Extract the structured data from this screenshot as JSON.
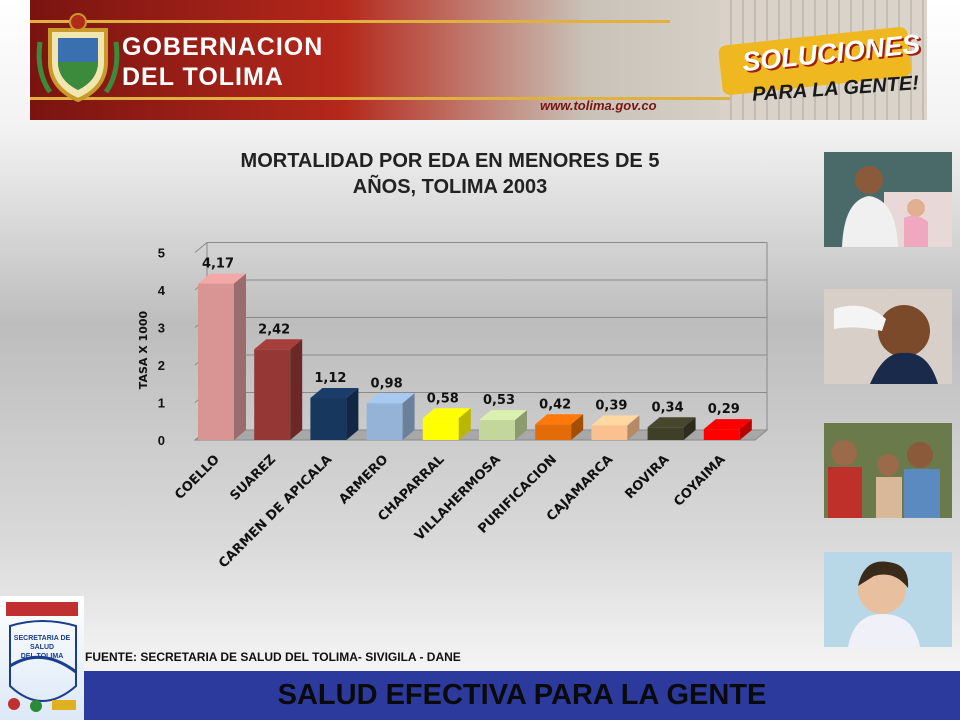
{
  "header": {
    "title_line1": "GOBERNACION",
    "title_line2": "DEL TOLIMA",
    "url": "www.tolima.gov.co",
    "slogan_main": "SOLUCIONES",
    "slogan_sub": "PARA LA GENTE!"
  },
  "chart_title_line1": "MORTALIDAD POR EDA EN MENORES DE 5",
  "chart_title_line2": "AÑOS, TOLIMA 2003",
  "chart_data": {
    "type": "bar",
    "categories": [
      "COELLO",
      "SUAREZ",
      "CARMEN DE APICALA",
      "ARMERO",
      "CHAPARRAL",
      "VILLAHERMOSA",
      "PURIFICACION",
      "CAJAMARCA",
      "ROVIRA",
      "COYAIMA"
    ],
    "values": [
      4.17,
      2.42,
      1.12,
      0.98,
      0.58,
      0.53,
      0.42,
      0.39,
      0.34,
      0.29
    ],
    "data_labels": [
      "4,17",
      "2,42",
      "1,12",
      "0,98",
      "0,58",
      "0,53",
      "0,42",
      "0,39",
      "0,34",
      "0,29"
    ],
    "colors": [
      "#d99594",
      "#953735",
      "#17375e",
      "#95b3d7",
      "#ffff00",
      "#c3d69b",
      "#e36c09",
      "#fac090",
      "#3f3f28",
      "#ff0000"
    ],
    "ylabel": "TASA X 1000",
    "ylim": [
      0,
      5
    ],
    "yticks": [
      0,
      1,
      2,
      3,
      4,
      5
    ],
    "grid": true
  },
  "logo_text_line1": "SECRETARIA DE SALUD",
  "logo_text_line2": "DEL TOLIMA",
  "source": "FUENTE: SECRETARIA DE SALUD DEL TOLIMA- SIVIGILA - DANE",
  "footer": "SALUD EFECTIVA PARA LA GENTE"
}
